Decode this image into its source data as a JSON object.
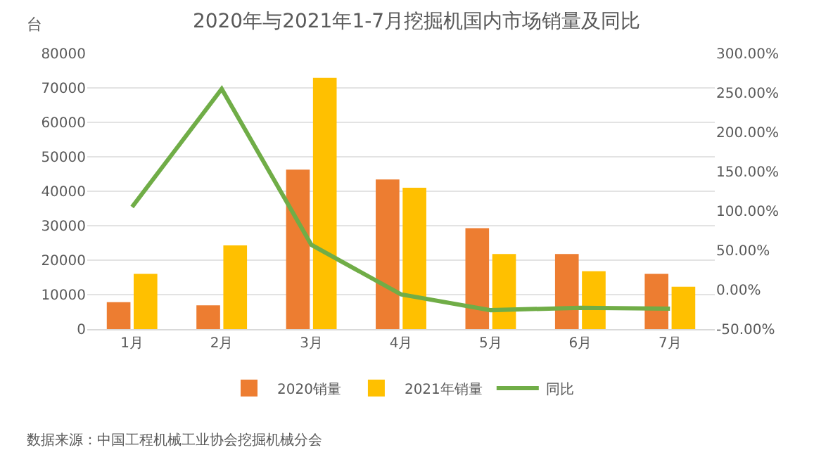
{
  "chart_data": {
    "type": "bar",
    "title": "2020年与2021年1-7月挖掘机国内市场销量及同比",
    "ylabel": "台",
    "categories": [
      "1月",
      "2月",
      "3月",
      "4月",
      "5月",
      "6月",
      "7月"
    ],
    "series": [
      {
        "name": "2020销量",
        "color": "#ed7d31",
        "values": [
          7800,
          6900,
          46300,
          43400,
          29300,
          21800,
          16000
        ]
      },
      {
        "name": "2021年销量",
        "color": "#ffc000",
        "values": [
          16000,
          24300,
          72900,
          41000,
          21800,
          16800,
          12300
        ]
      },
      {
        "name": "同比",
        "type": "line",
        "axis": "y2",
        "color": "#70ad47",
        "values": [
          105,
          255,
          57,
          -6,
          -26,
          -23,
          -24
        ]
      }
    ],
    "ylim": [
      0,
      80000
    ],
    "yticks": [
      0,
      10000,
      20000,
      30000,
      40000,
      50000,
      60000,
      70000,
      80000
    ],
    "y2lim": [
      -50,
      300
    ],
    "y2ticks": [
      {
        "value": -50,
        "label": "-50.00%"
      },
      {
        "value": 0,
        "label": "0.00%"
      },
      {
        "value": 50,
        "label": "50.00%"
      },
      {
        "value": 100,
        "label": "100.00%"
      },
      {
        "value": 150,
        "label": "150.00%"
      },
      {
        "value": 200,
        "label": "200.00%"
      },
      {
        "value": 250,
        "label": "250.00%"
      },
      {
        "value": 300,
        "label": "300.00%"
      }
    ],
    "grid": "y",
    "legend": "bottom",
    "marker": "none",
    "line_style": "solid",
    "annotations": [
      "数据来源：中国工程机械工业协会挖掘机械分会"
    ]
  }
}
